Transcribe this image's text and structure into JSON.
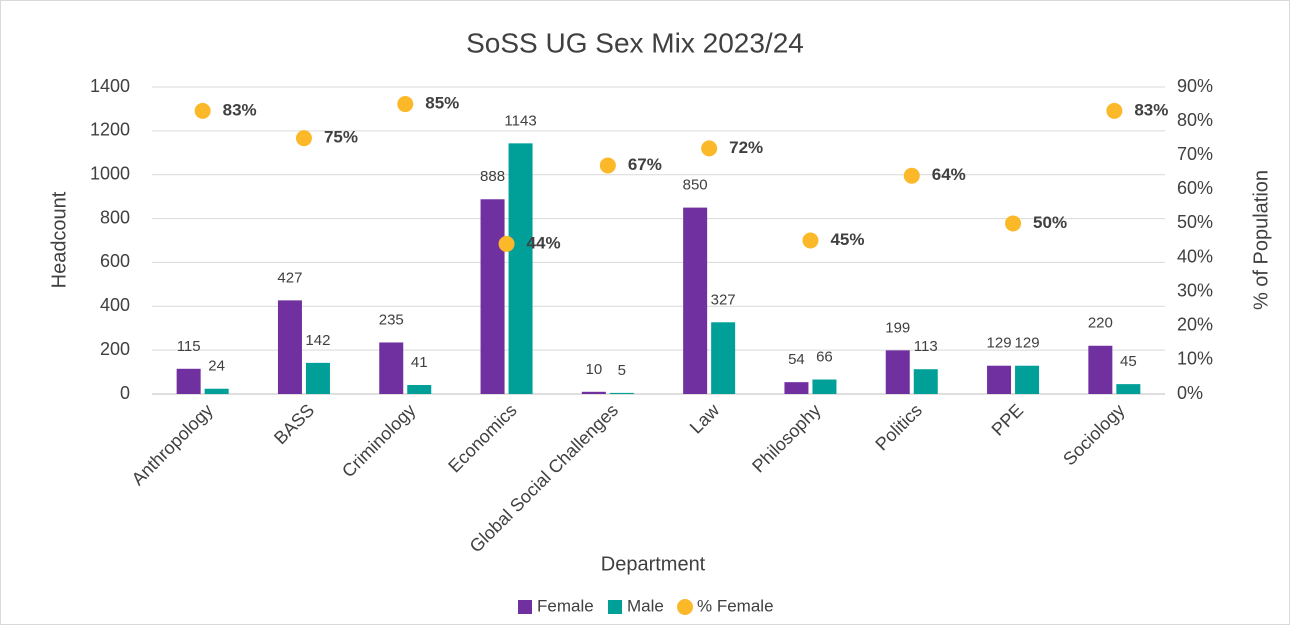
{
  "chart_data": {
    "type": "bar",
    "title": "SoSS UG Sex Mix 2023/24",
    "x_label": "Department",
    "y_label": "Headcount",
    "y2_label": "% of Population",
    "categories": [
      "Anthropology",
      "BASS",
      "Criminology",
      "Economics",
      "Global Social Challenges",
      "Law",
      "Philosophy",
      "Politics",
      "PPE",
      "Sociology"
    ],
    "series": [
      {
        "name": "Female",
        "color": "#7030a0",
        "values": [
          115,
          427,
          235,
          888,
          10,
          850,
          54,
          199,
          129,
          220
        ]
      },
      {
        "name": "Male",
        "color": "#00a099",
        "values": [
          24,
          142,
          41,
          1143,
          5,
          327,
          66,
          113,
          129,
          45
        ]
      },
      {
        "name": "% Female",
        "type": "scatter",
        "axis": "y2",
        "color": "#fbb829",
        "values": [
          83,
          75,
          85,
          44,
          67,
          72,
          45,
          64,
          50,
          83
        ],
        "value_labels": [
          "83%",
          "75%",
          "85%",
          "44%",
          "67%",
          "72%",
          "45%",
          "64%",
          "50%",
          "83%"
        ]
      }
    ],
    "ylim": [
      0,
      1400
    ],
    "yticks": [
      0,
      200,
      400,
      600,
      800,
      1000,
      1200,
      1400
    ],
    "y2lim": [
      0,
      90
    ],
    "y2ticks": [
      {
        "value": 0,
        "label": "0%"
      },
      {
        "value": 10,
        "label": "10%"
      },
      {
        "value": 20,
        "label": "20%"
      },
      {
        "value": 30,
        "label": "30%"
      },
      {
        "value": 40,
        "label": "40%"
      },
      {
        "value": 50,
        "label": "50%"
      },
      {
        "value": 60,
        "label": "60%"
      },
      {
        "value": 70,
        "label": "70%"
      },
      {
        "value": 80,
        "label": "80%"
      },
      {
        "value": 90,
        "label": "90%"
      }
    ],
    "grid": true,
    "legend": "bottom"
  }
}
